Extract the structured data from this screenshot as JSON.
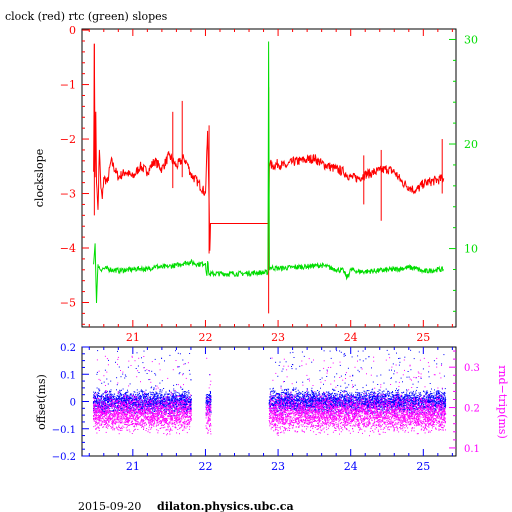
{
  "title": "clock (red) rtc (green) slopes",
  "footer": {
    "date": "2015-09-20",
    "host": "dilaton.physics.ubc.ca"
  },
  "colors": {
    "red": "#ff0000",
    "green": "#00dd00",
    "blue": "#0000ff",
    "magenta": "#ff00ff",
    "axis": "#000000"
  },
  "chart_data": [
    {
      "type": "line",
      "ylabel": "clockslope",
      "right_ylabel": "",
      "xlim": [
        20.3,
        25.45
      ],
      "ylim_left": [
        -5.45,
        0.02
      ],
      "ylim_right": [
        2.5,
        31.0
      ],
      "x_ticks": [
        "21",
        "22",
        "23",
        "24",
        "25"
      ],
      "left_ticks": [
        "0",
        "−1",
        "−2",
        "−3",
        "−4",
        "−5"
      ],
      "right_ticks": [
        "10",
        "20",
        "30"
      ],
      "series": [
        {
          "color": "red",
          "axis": "left",
          "x": [
            20.46,
            20.47,
            20.48,
            20.49,
            20.5,
            20.52,
            20.54,
            20.56,
            20.58,
            20.6,
            20.65,
            20.7,
            20.8,
            20.9,
            21.0,
            21.1,
            21.2,
            21.3,
            21.4,
            21.5,
            21.6,
            21.7,
            21.75,
            21.8,
            21.9,
            22.0,
            22.03,
            22.05,
            22.06,
            22.07,
            22.09,
            22.5,
            22.87,
            22.88,
            22.89,
            22.92,
            23.0,
            23.1,
            23.2,
            23.3,
            23.4,
            23.5,
            23.6,
            23.7,
            23.8,
            23.9,
            24.0,
            24.1,
            24.2,
            24.3,
            24.4,
            24.5,
            24.6,
            24.7,
            24.8,
            24.9,
            25.0,
            25.1,
            25.2,
            25.28
          ],
          "y": [
            -2.6,
            -0.25,
            -2.7,
            -1.5,
            -2.8,
            -3.3,
            -2.2,
            -2.9,
            -3.1,
            -2.7,
            -2.8,
            -2.4,
            -2.7,
            -2.6,
            -2.7,
            -2.5,
            -2.6,
            -2.4,
            -2.55,
            -2.3,
            -2.5,
            -2.35,
            -2.45,
            -2.65,
            -2.8,
            -3.0,
            -1.85,
            -3.2,
            -4.05,
            -3.55,
            -3.55,
            -3.55,
            -3.55,
            -2.45,
            -2.45,
            -2.5,
            -2.45,
            -2.5,
            -2.42,
            -2.4,
            -2.38,
            -2.35,
            -2.45,
            -2.5,
            -2.55,
            -2.6,
            -2.7,
            -2.72,
            -2.65,
            -2.62,
            -2.58,
            -2.55,
            -2.6,
            -2.78,
            -2.88,
            -2.95,
            -2.82,
            -2.78,
            -2.75,
            -2.72
          ]
        },
        {
          "color": "green",
          "axis": "right",
          "x": [
            20.46,
            20.48,
            20.5,
            20.52,
            20.55,
            20.6,
            20.7,
            20.8,
            20.9,
            21.0,
            21.1,
            21.2,
            21.3,
            21.4,
            21.5,
            21.6,
            21.7,
            21.8,
            21.9,
            22.0,
            22.02,
            22.03,
            22.05,
            22.1,
            22.3,
            22.5,
            22.7,
            22.86,
            22.87,
            22.88,
            22.9,
            23.0,
            23.2,
            23.4,
            23.6,
            23.8,
            23.9,
            23.95,
            24.0,
            24.1,
            24.2,
            24.4,
            24.6,
            24.8,
            24.9,
            25.0,
            25.1,
            25.2,
            25.28
          ],
          "y": [
            8.5,
            10.5,
            4.8,
            8.5,
            8.0,
            8.1,
            8.0,
            7.9,
            7.95,
            8.0,
            8.1,
            8.0,
            8.3,
            8.2,
            8.3,
            8.4,
            8.6,
            8.7,
            8.5,
            8.6,
            7.4,
            8.8,
            7.5,
            7.6,
            7.6,
            7.6,
            7.7,
            7.7,
            29.8,
            8.1,
            8.2,
            8.1,
            8.2,
            8.3,
            8.4,
            8.0,
            7.9,
            7.2,
            8.0,
            7.8,
            7.8,
            7.9,
            8.0,
            8.2,
            8.1,
            7.8,
            7.9,
            8.0,
            8.0
          ]
        }
      ],
      "flat_segment": {
        "x": [
          22.06,
          22.87
        ],
        "y": -3.55
      }
    },
    {
      "type": "scatter",
      "ylabel": "offset(ms)",
      "right_ylabel": "rnd−trip(ms)",
      "xlim": [
        20.3,
        25.45
      ],
      "ylim_left": [
        -0.2,
        0.2
      ],
      "ylim_right": [
        0.08,
        0.35
      ],
      "x_ticks": [
        "21",
        "22",
        "23",
        "24",
        "25"
      ],
      "left_ticks": [
        "0.2",
        "0.1",
        "0",
        "−0.1",
        "−0.2"
      ],
      "right_ticks": [
        "0.3",
        "0.2",
        "0.1"
      ],
      "series": [
        {
          "color": "blue",
          "axis": "left",
          "center": 0.0,
          "spread": 0.03,
          "outlier_max": 0.19,
          "outlier_min": -0.07,
          "ranges": [
            [
              20.45,
              21.8
            ],
            [
              22.0,
              22.07
            ],
            [
              22.87,
              25.3
            ]
          ]
        },
        {
          "color": "magenta",
          "axis": "right",
          "center": 0.185,
          "spread": 0.03,
          "outlier_max": 0.33,
          "outlier_min": 0.135,
          "ranges": [
            [
              20.45,
              21.8
            ],
            [
              22.0,
              22.07
            ],
            [
              22.87,
              25.3
            ]
          ]
        }
      ]
    }
  ]
}
